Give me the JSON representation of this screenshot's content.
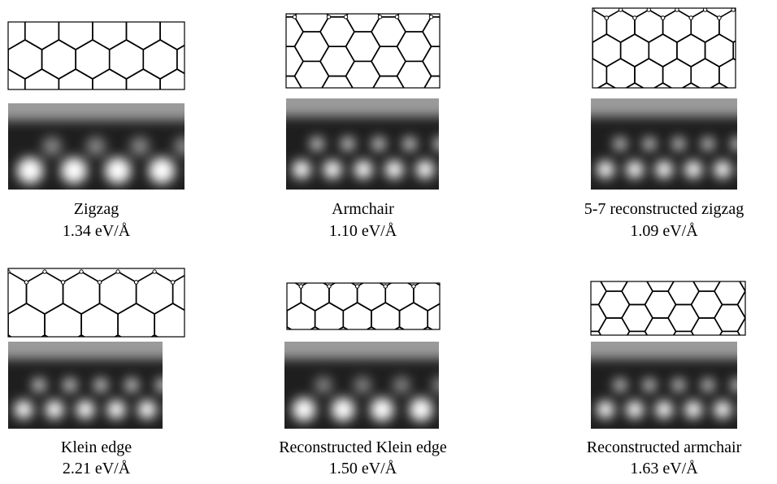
{
  "panels": [
    {
      "label": "Zigzag",
      "energy": "1.34 eV/Å"
    },
    {
      "label": "Armchair",
      "energy": "1.10 eV/Å"
    },
    {
      "label": "5-7 reconstructed zigzag",
      "energy": "1.09 eV/Å"
    },
    {
      "label": "Klein edge",
      "energy": "2.21 eV/Å"
    },
    {
      "label": "Reconstructed Klein edge",
      "energy": "1.50 eV/Å"
    },
    {
      "label": "Reconstructed armchair",
      "energy": "1.63 eV/Å"
    }
  ]
}
